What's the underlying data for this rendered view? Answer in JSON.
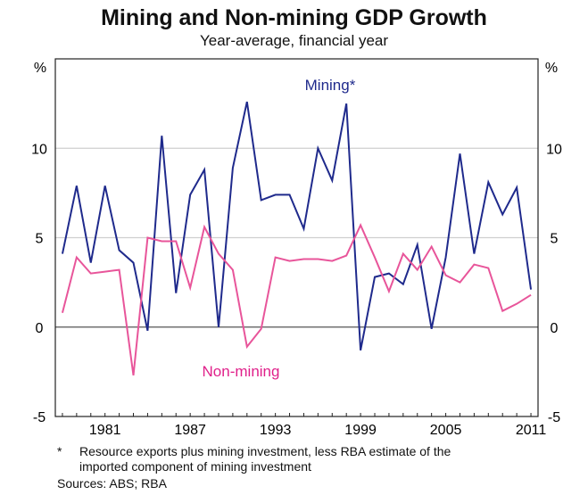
{
  "chart_data": {
    "type": "line",
    "title": "Mining and Non-mining GDP Growth",
    "subtitle": "Year-average, financial year",
    "ylabel_left": "%",
    "ylabel_right": "%",
    "ylim": [
      -5,
      15
    ],
    "yticks": [
      -5,
      0,
      5,
      10
    ],
    "xlim": [
      1977.5,
      2011.5
    ],
    "xticks": [
      1981,
      1987,
      1993,
      1999,
      2005,
      2011
    ],
    "grid": true,
    "x": [
      1978,
      1979,
      1980,
      1981,
      1982,
      1983,
      1984,
      1985,
      1986,
      1987,
      1988,
      1989,
      1990,
      1991,
      1992,
      1993,
      1994,
      1995,
      1996,
      1997,
      1998,
      1999,
      2000,
      2001,
      2002,
      2003,
      2004,
      2005,
      2006,
      2007,
      2008,
      2009,
      2010,
      2011
    ],
    "series": [
      {
        "name": "Mining*",
        "color": "#1f2a8c",
        "values": [
          4.1,
          7.9,
          3.6,
          7.9,
          4.3,
          3.6,
          -0.2,
          10.7,
          1.9,
          7.4,
          8.8,
          0.0,
          8.9,
          12.6,
          7.1,
          7.4,
          7.4,
          5.5,
          10.0,
          8.2,
          12.5,
          -1.3,
          2.8,
          3.0,
          2.4,
          4.6,
          -0.1,
          3.9,
          9.7,
          4.1,
          8.1,
          6.3,
          7.8,
          2.1
        ]
      },
      {
        "name": "Non-mining",
        "color": "#e8559a",
        "values": [
          0.8,
          3.9,
          3.0,
          3.1,
          3.2,
          -2.7,
          5.0,
          4.8,
          4.8,
          2.2,
          5.6,
          4.1,
          3.2,
          -1.1,
          -0.1,
          3.9,
          3.7,
          3.8,
          3.8,
          3.7,
          4.0,
          5.7,
          3.9,
          2.0,
          4.1,
          3.2,
          4.5,
          2.9,
          2.5,
          3.5,
          3.3,
          0.9,
          1.3,
          1.8
        ]
      }
    ]
  },
  "footnotes": {
    "star": "*",
    "line1": "Resource exports plus mining investment, less RBA estimate of the",
    "line2": "imported component of mining investment",
    "sources": "Sources: ABS; RBA"
  }
}
